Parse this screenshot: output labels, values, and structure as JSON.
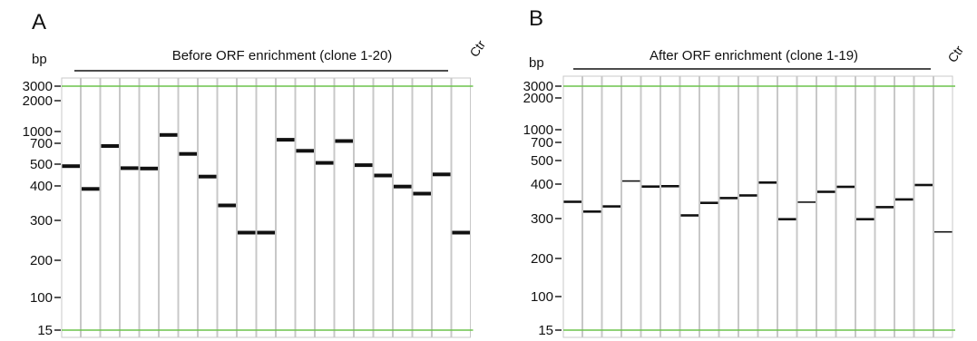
{
  "colors": {
    "marker_line": "#6cc44c",
    "lane_border": "#c8c8c8",
    "band": "#111111",
    "text": "#111111"
  },
  "panels": [
    {
      "label": "A",
      "unit_label": "bp",
      "group_label": "Before ORF enrichment (clone 1-20)",
      "control_label": "Ctr",
      "ladder": [
        3000,
        2000,
        1000,
        700,
        500,
        400,
        300,
        200,
        100,
        15
      ],
      "marker_lines": [
        3000,
        15
      ],
      "lanes": [
        {
          "band": 490,
          "intensity": "strong"
        },
        {
          "band": 390,
          "intensity": "strong"
        },
        {
          "band": 670,
          "intensity": "strong"
        },
        {
          "band": 480,
          "intensity": "strong"
        },
        {
          "band": 478,
          "intensity": "strong"
        },
        {
          "band": 900,
          "intensity": "strong"
        },
        {
          "band": 590,
          "intensity": "strong"
        },
        {
          "band": 440,
          "intensity": "strong"
        },
        {
          "band": 340,
          "intensity": "strong"
        },
        {
          "band": 265,
          "intensity": "strong"
        },
        {
          "band": 265,
          "intensity": "strong"
        },
        {
          "band": 780,
          "intensity": "strong"
        },
        {
          "band": 620,
          "intensity": "strong"
        },
        {
          "band": 510,
          "intensity": "strong"
        },
        {
          "band": 750,
          "intensity": "strong"
        },
        {
          "band": 495,
          "intensity": "strong"
        },
        {
          "band": 445,
          "intensity": "strong"
        },
        {
          "band": 398,
          "intensity": "strong"
        },
        {
          "band": 375,
          "intensity": "strong"
        },
        {
          "band": 450,
          "intensity": "strong"
        },
        {
          "band": 265,
          "intensity": "strong"
        }
      ]
    },
    {
      "label": "B",
      "unit_label": "bp",
      "group_label": "After ORF enrichment (clone 1-19)",
      "control_label": "Ctr",
      "ladder": [
        3000,
        2000,
        1000,
        700,
        500,
        400,
        300,
        200,
        100,
        15
      ],
      "marker_lines": [
        3000,
        15
      ],
      "lanes": [
        {
          "band": 345,
          "intensity": "strong"
        },
        {
          "band": 318,
          "intensity": "strong"
        },
        {
          "band": 332,
          "intensity": "strong"
        },
        {
          "band": 412,
          "intensity": "faint"
        },
        {
          "band": 392,
          "intensity": "strong"
        },
        {
          "band": 393,
          "intensity": "strong"
        },
        {
          "band": 308,
          "intensity": "strong"
        },
        {
          "band": 342,
          "intensity": "strong"
        },
        {
          "band": 356,
          "intensity": "strong"
        },
        {
          "band": 364,
          "intensity": "strong"
        },
        {
          "band": 406,
          "intensity": "strong"
        },
        {
          "band": 298,
          "intensity": "strong"
        },
        {
          "band": 344,
          "intensity": "faint"
        },
        {
          "band": 375,
          "intensity": "strong"
        },
        {
          "band": 391,
          "intensity": "strong"
        },
        {
          "band": 298,
          "intensity": "strong"
        },
        {
          "band": 330,
          "intensity": "strong"
        },
        {
          "band": 352,
          "intensity": "strong"
        },
        {
          "band": 397,
          "intensity": "strong"
        },
        {
          "band": 262,
          "intensity": "faint"
        }
      ]
    }
  ]
}
